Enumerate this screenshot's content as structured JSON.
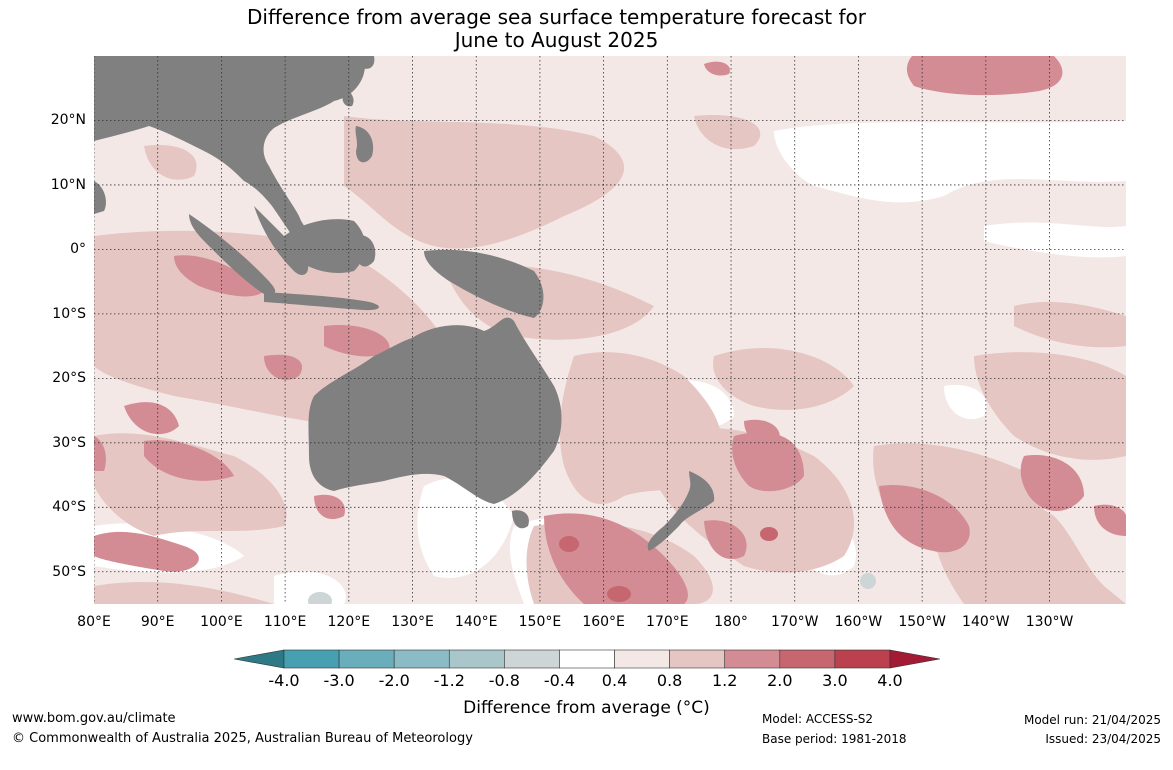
{
  "title": {
    "line1": "Difference from average sea surface temperature forecast for",
    "line2": "June to August 2025"
  },
  "map": {
    "projection": "equirectangular",
    "extent": {
      "lon_min": 80,
      "lon_max": 242,
      "lat_min": -55,
      "lat_max": 30
    },
    "land_color": "#808080",
    "gridlines": "dotted",
    "lat_labels": [
      "20°N",
      "10°N",
      "0°",
      "10°S",
      "20°S",
      "30°S",
      "40°S",
      "50°S"
    ],
    "lat_values": [
      20,
      10,
      0,
      -10,
      -20,
      -30,
      -40,
      -50
    ],
    "lon_labels": [
      "80°E",
      "90°E",
      "100°E",
      "110°E",
      "120°E",
      "130°E",
      "140°E",
      "150°E",
      "160°E",
      "170°E",
      "180°",
      "170°W",
      "160°W",
      "150°W",
      "140°W",
      "130°W"
    ],
    "lon_values": [
      80,
      90,
      100,
      110,
      120,
      130,
      140,
      150,
      160,
      170,
      180,
      190,
      200,
      210,
      220,
      230
    ]
  },
  "colorbar": {
    "ticks": [
      "-4.0",
      "-3.0",
      "-2.0",
      "-1.2",
      "-0.8",
      "-0.4",
      "0.4",
      "0.8",
      "1.2",
      "2.0",
      "3.0",
      "4.0"
    ],
    "colors": {
      "below": "#2d7a86",
      "bins": [
        "#47a0b2",
        "#6aadbb",
        "#8bbbc4",
        "#a9c7cb",
        "#cdd5d6",
        "#ffffff",
        "#f4e8e7",
        "#e6c6c3",
        "#d48c94",
        "#c6666f",
        "#bb414f"
      ],
      "above": "#a31a35"
    },
    "title": "Difference from average (°C)"
  },
  "footer": {
    "website": "www.bom.gov.au/climate",
    "copyright": "© Commonwealth of Australia 2025, Australian Bureau of Meteorology",
    "model": "Model: ACCESS-S2",
    "base_period": "Base period: 1981-2018",
    "model_run": "Model run: 21/04/2025",
    "issued": "Issued: 23/04/2025"
  }
}
